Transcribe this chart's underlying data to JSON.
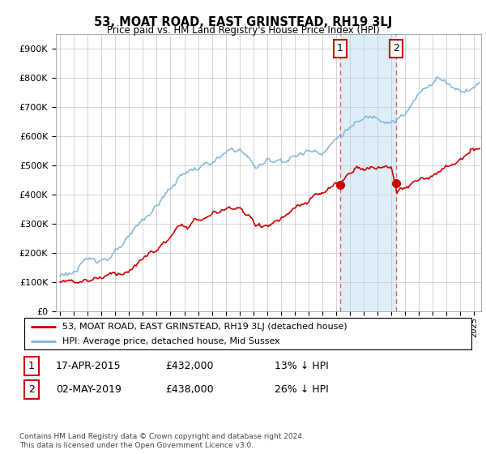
{
  "title": "53, MOAT ROAD, EAST GRINSTEAD, RH19 3LJ",
  "subtitle": "Price paid vs. HM Land Registry's House Price Index (HPI)",
  "ylabel_ticks": [
    "£0",
    "£100K",
    "£200K",
    "£300K",
    "£400K",
    "£500K",
    "£600K",
    "£700K",
    "£800K",
    "£900K"
  ],
  "ytick_values": [
    0,
    100000,
    200000,
    300000,
    400000,
    500000,
    600000,
    700000,
    800000,
    900000
  ],
  "ylim": [
    0,
    950000
  ],
  "xlim_start": 1994.7,
  "xlim_end": 2025.5,
  "hpi_color": "#7ab4d8",
  "price_color": "#cc0000",
  "background_color": "#ffffff",
  "grid_color": "#cccccc",
  "transaction1_x": 2015.29,
  "transaction1_y": 432000,
  "transaction1_label": "1",
  "transaction2_x": 2019.34,
  "transaction2_y": 438000,
  "transaction2_label": "2",
  "highlight_span_x0": 2015.29,
  "highlight_span_x1": 2019.34,
  "legend_line1": "53, MOAT ROAD, EAST GRINSTEAD, RH19 3LJ (detached house)",
  "legend_line2": "HPI: Average price, detached house, Mid Sussex",
  "table_row1_num": "1",
  "table_row1_date": "17-APR-2015",
  "table_row1_price": "£432,000",
  "table_row1_hpi": "13% ↓ HPI",
  "table_row2_num": "2",
  "table_row2_date": "02-MAY-2019",
  "table_row2_price": "£438,000",
  "table_row2_hpi": "26% ↓ HPI",
  "footer": "Contains HM Land Registry data © Crown copyright and database right 2024.\nThis data is licensed under the Open Government Licence v3.0.",
  "highlight_color": "#ddeef8"
}
